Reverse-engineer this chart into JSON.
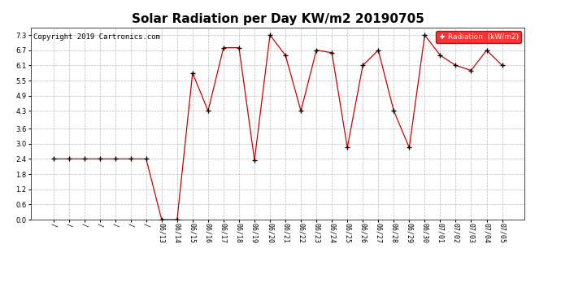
{
  "title": "Solar Radiation per Day KW/m2 20190705",
  "copyright": "Copyright 2019 Cartronics.com",
  "legend_label": "Radiation  (kW/m2)",
  "pre_labels": [
    "/",
    "/",
    "/",
    "/",
    "/",
    "/",
    "/"
  ],
  "date_labels": [
    "06/13",
    "06/14",
    "06/15",
    "06/16",
    "06/17",
    "06/18",
    "06/19",
    "06/20",
    "06/21",
    "06/22",
    "06/23",
    "06/24",
    "06/25",
    "06/26",
    "06/27",
    "06/28",
    "06/29",
    "06/30",
    "07/01",
    "07/02",
    "07/03",
    "07/04",
    "07/05"
  ],
  "pre_values": [
    2.4,
    2.4,
    2.4,
    2.4,
    2.4,
    2.4,
    2.4
  ],
  "date_values": [
    0.0,
    0.0,
    5.8,
    4.3,
    6.8,
    6.8,
    2.35,
    7.3,
    6.5,
    4.3,
    6.7,
    6.6,
    2.85,
    6.1,
    6.7,
    4.3,
    2.85,
    7.3,
    6.5,
    6.1,
    5.9,
    6.7,
    6.1
  ],
  "ylim": [
    0.0,
    7.6
  ],
  "yticks": [
    0.0,
    0.6,
    1.2,
    1.8,
    2.4,
    3.0,
    3.6,
    4.3,
    4.9,
    5.5,
    6.1,
    6.7,
    7.3
  ],
  "line_color": "#cc0000",
  "marker_color": "#000000",
  "bg_color": "#ffffff",
  "grid_color": "#bbbbbb",
  "title_fontsize": 11,
  "tick_fontsize": 6,
  "copyright_fontsize": 6.5
}
